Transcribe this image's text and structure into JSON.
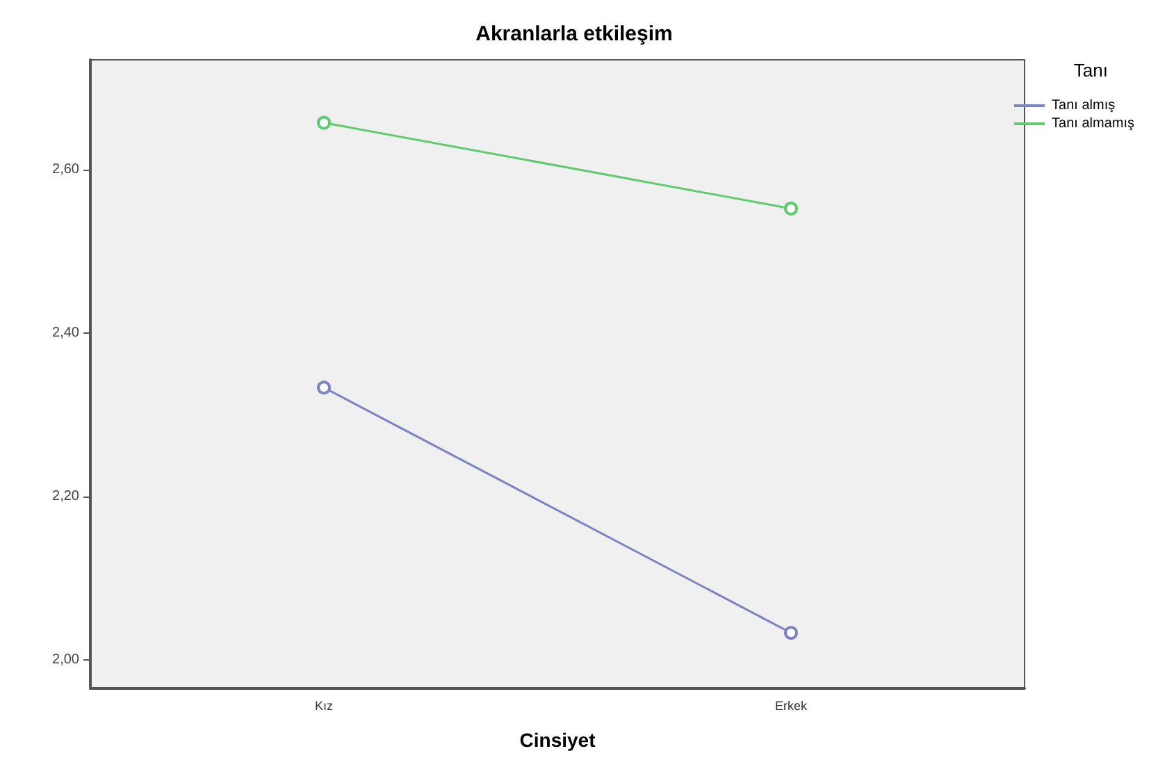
{
  "chart_data": {
    "type": "line",
    "title": "Akranlarla etkileşim",
    "xlabel": "Cinsiyet",
    "legend_title": "Tanı",
    "categories": [
      "Kız",
      "Erkek"
    ],
    "series": [
      {
        "name": "Tanı almış",
        "color": "#7b84c4",
        "values": [
          2.333,
          2.033
        ]
      },
      {
        "name": "Tanı almamış",
        "color": "#5ccc6e",
        "values": [
          2.657,
          2.552
        ]
      }
    ],
    "ylim": [
      1.965,
      2.734
    ],
    "yticks": [
      {
        "value": 2.0,
        "label": "2,00"
      },
      {
        "value": 2.2,
        "label": "2,20"
      },
      {
        "value": 2.4,
        "label": "2,40"
      },
      {
        "value": 2.6,
        "label": "2,60"
      }
    ],
    "grid": false,
    "legend": "top right",
    "marker": "circle",
    "line_style": "solid"
  }
}
